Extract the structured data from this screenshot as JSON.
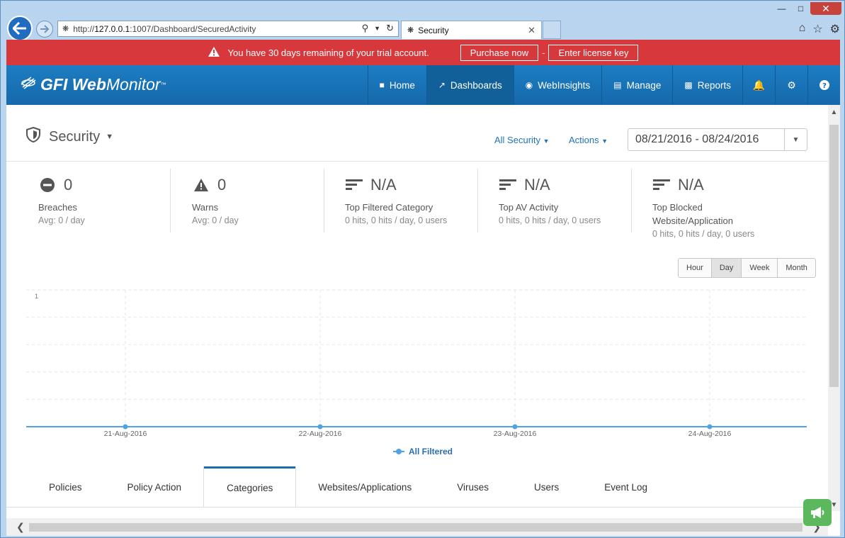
{
  "browser": {
    "url_prefix": "http://",
    "url_host": "127.0.0.1",
    "url_rest": ":1007/Dashboard/SecuredActivity",
    "tab_title": "Security"
  },
  "trial": {
    "message": "You have 30 days remaining of your trial account.",
    "purchase_label": "Purchase now",
    "separator": "-",
    "license_label": "Enter license key"
  },
  "app": {
    "logo_gfi": "GFI",
    "logo_web": "Web",
    "logo_monitor": "Monitor",
    "logo_tm": "™"
  },
  "nav": {
    "home": "Home",
    "dashboards": "Dashboards",
    "webinsights": "WebInsights",
    "manage": "Manage",
    "reports": "Reports"
  },
  "page": {
    "title": "Security",
    "filter_label": "All Security",
    "actions_label": "Actions",
    "date_range": "08/21/2016 - 08/24/2016"
  },
  "stats": [
    {
      "value": "0",
      "label": "Breaches",
      "sub": "Avg: 0 / day",
      "icon": "minus-circle-icon"
    },
    {
      "value": "0",
      "label": "Warns",
      "sub": "Avg: 0 / day",
      "icon": "warning-icon"
    },
    {
      "value": "N/A",
      "label": "Top Filtered Category",
      "sub": "0 hits, 0 hits / day, 0 users",
      "icon": "bars-icon"
    },
    {
      "value": "N/A",
      "label": "Top AV Activity",
      "sub": "0 hits, 0 hits / day, 0 users",
      "icon": "bars-icon"
    },
    {
      "value": "N/A",
      "label": "Top Blocked Website/Application",
      "sub": "0 hits, 0 hits / day, 0 users",
      "icon": "bars-icon"
    }
  ],
  "granularity": {
    "hour": "Hour",
    "day": "Day",
    "week": "Week",
    "month": "Month",
    "selected": "Day"
  },
  "chart_data": {
    "type": "line",
    "x": [
      "21-Aug-2016",
      "22-Aug-2016",
      "23-Aug-2016",
      "24-Aug-2016"
    ],
    "series": [
      {
        "name": "All Filtered",
        "values": [
          0,
          0,
          0,
          0
        ]
      }
    ],
    "ylim": [
      0,
      1
    ],
    "yticks": [
      "1"
    ],
    "grid": true,
    "legend": "bottom-center",
    "color": "#4fa3e3"
  },
  "subtabs": {
    "policies": "Policies",
    "policy_action": "Policy Action",
    "categories": "Categories",
    "websites": "Websites/Applications",
    "viruses": "Viruses",
    "users": "Users",
    "event_log": "Event Log",
    "selected": "Categories"
  }
}
